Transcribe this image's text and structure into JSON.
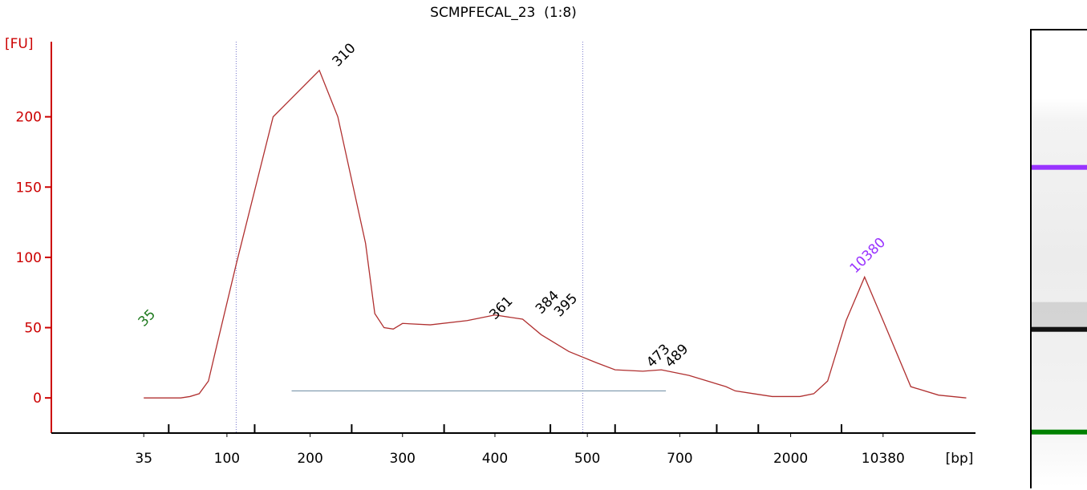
{
  "title": "SCMPFECAL_23  (1:8)",
  "chart_data": {
    "type": "line",
    "title": "SCMPFECAL_23  (1:8)",
    "ylabel": "[FU]",
    "xlabel": "[bp]",
    "ylim": [
      -25,
      250
    ],
    "y_ticks": [
      0,
      50,
      100,
      150,
      200
    ],
    "x_tick_labels": [
      "35",
      "100",
      "200",
      "300",
      "400",
      "500",
      "700",
      "2000",
      "10380"
    ],
    "series": [
      {
        "x": [
          10,
          12,
          14,
          15,
          16,
          17,
          18,
          20,
          24,
          29,
          31,
          34,
          35,
          36,
          37,
          38,
          41,
          45,
          48,
          51,
          53,
          56,
          59,
          61,
          64,
          66,
          69,
          71,
          73,
          74,
          76,
          78,
          81,
          82.5,
          84,
          86,
          88,
          90,
          93,
          96,
          99
        ],
        "y": [
          0,
          0,
          0,
          1,
          3,
          12,
          40,
          95,
          200,
          233,
          200,
          110,
          60,
          50,
          49,
          53,
          52,
          55,
          59,
          56,
          45,
          33,
          25,
          20,
          19,
          20,
          16,
          12,
          8,
          5,
          3,
          1,
          1,
          3,
          12,
          55,
          86,
          55,
          8,
          2,
          0
        ]
      }
    ],
    "peaks": [
      {
        "label": "35",
        "x": 10,
        "y": 48,
        "color": "#1f7a1f"
      },
      {
        "label": "310",
        "x": 31,
        "y": 233,
        "color": "#000000"
      },
      {
        "label": "361",
        "x": 48,
        "y": 53,
        "color": "#000000"
      },
      {
        "label": "384",
        "x": 53,
        "y": 57,
        "color": "#000000"
      },
      {
        "label": "395",
        "x": 55,
        "y": 55,
        "color": "#000000"
      },
      {
        "label": "473",
        "x": 65,
        "y": 19,
        "color": "#000000"
      },
      {
        "label": "489",
        "x": 67,
        "y": 19,
        "color": "#000000"
      },
      {
        "label": "10380",
        "x": 87,
        "y": 86,
        "color": "#9933ff"
      }
    ],
    "dotted_vlines": [
      20,
      57.5
    ],
    "gel_bands": [
      {
        "kind": "marker",
        "color": "#9933ff",
        "level": 0.3
      },
      {
        "kind": "marker",
        "color": "#008000",
        "level": 0.88
      },
      {
        "kind": "sample",
        "color": "#000000",
        "level": 0.655
      }
    ],
    "colors": {
      "axis": "#cc0000",
      "trace": "#b03030",
      "grid": "#7777cc"
    }
  }
}
